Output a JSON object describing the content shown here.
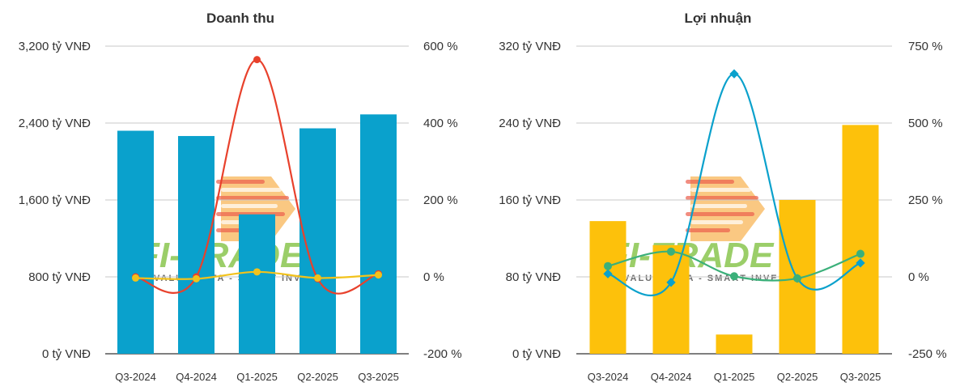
{
  "watermark": {
    "brand": "FI-TRADE",
    "tagline": "VALUE DATA - SMART INVEST"
  },
  "chart_data": [
    {
      "type": "bar",
      "title": "Doanh thu",
      "categories": [
        "Q3-2024",
        "Q4-2024",
        "Q1-2025",
        "Q2-2025",
        "Q3-2025"
      ],
      "y_left": {
        "ticks": [
          0,
          800,
          1600,
          2400,
          3200
        ],
        "tick_labels": [
          "0 tỷ VNĐ",
          "800 tỷ VNĐ",
          "1,600 tỷ VNĐ",
          "2,400 tỷ VNĐ",
          "3,200 tỷ VNĐ"
        ],
        "ylim": [
          0,
          3200
        ]
      },
      "y_right": {
        "ticks": [
          -200,
          0,
          200,
          400,
          600
        ],
        "tick_labels": [
          "-200 %",
          "0 %",
          "200 %",
          "400 %",
          "600 %"
        ],
        "ylim": [
          -200,
          600
        ]
      },
      "bars": {
        "values": [
          2320,
          2265,
          1450,
          2345,
          2490
        ],
        "color": "#0aa1cc"
      },
      "lines": [
        {
          "values": [
            0,
            0,
            565,
            -5,
            8
          ],
          "color": "#e8412c",
          "axis": "right"
        },
        {
          "values": [
            -3,
            -5,
            13,
            -3,
            5
          ],
          "color": "#f2c21b",
          "axis": "right"
        }
      ],
      "grid": true
    },
    {
      "type": "bar",
      "title": "Lợi nhuận",
      "categories": [
        "Q3-2024",
        "Q4-2024",
        "Q1-2025",
        "Q2-2025",
        "Q3-2025"
      ],
      "y_left": {
        "ticks": [
          0,
          80,
          160,
          240,
          320
        ],
        "tick_labels": [
          "0 tỷ VNĐ",
          "80 tỷ VNĐ",
          "160 tỷ VNĐ",
          "240 tỷ VNĐ",
          "320 tỷ VNĐ"
        ],
        "ylim": [
          0,
          320
        ]
      },
      "y_right": {
        "ticks": [
          -250,
          0,
          250,
          500,
          750
        ],
        "tick_labels": [
          "-250 %",
          "0 %",
          "250 %",
          "500 %",
          "750 %"
        ],
        "ylim": [
          -250,
          750
        ]
      },
      "bars": {
        "values": [
          138,
          113,
          20,
          160,
          238
        ],
        "color": "#fdc10b"
      },
      "lines": [
        {
          "values": [
            10,
            -18,
            660,
            -5,
            45
          ],
          "color": "#0aa1cc",
          "axis": "right"
        },
        {
          "values": [
            35,
            82,
            2,
            -5,
            75
          ],
          "color": "#3bb07a",
          "axis": "right"
        }
      ],
      "grid": true
    }
  ]
}
